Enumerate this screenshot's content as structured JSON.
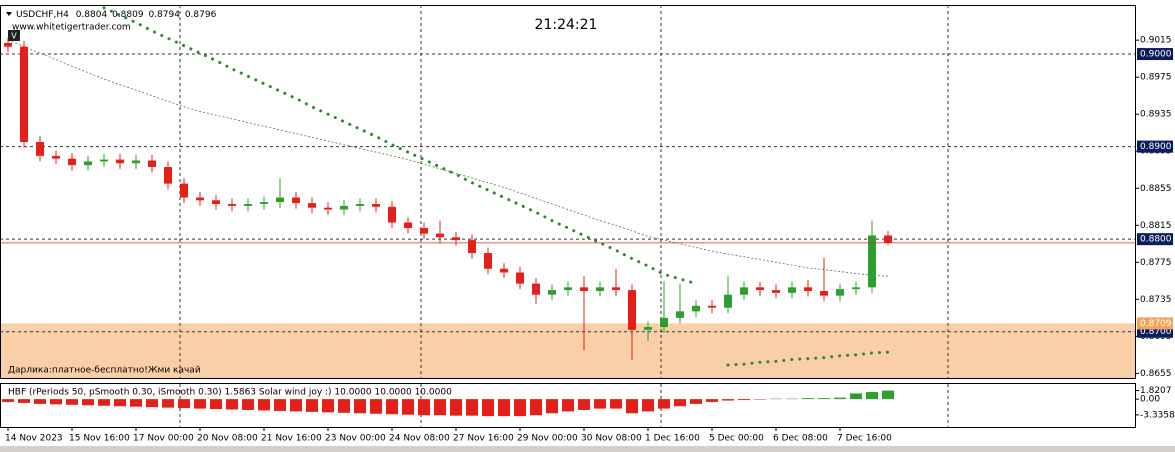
{
  "chart_data": {
    "type": "candlestick",
    "symbol": "USDCHF,H4",
    "watermark": "www.whitetigertrader.com",
    "badge": "V",
    "clock": "21:24:21",
    "up_color": "#2e9e2e",
    "down_color": "#e4201b",
    "ylim": [
      0.865,
      0.9053
    ],
    "yticks": [
      0.9015,
      0.8975,
      0.8935,
      0.8895,
      0.8855,
      0.8815,
      0.8775,
      0.8735,
      0.8695,
      0.8655
    ],
    "levels": [
      {
        "value": 0.9,
        "label": "0.9000"
      },
      {
        "value": 0.89,
        "label": "0.8900"
      },
      {
        "value": 0.88,
        "label": "0.8800"
      },
      {
        "value": 0.87,
        "label": "0.8700"
      }
    ],
    "zone": {
      "top": {
        "value": 0.8709,
        "label": "0.8709"
      },
      "text": "Дарлика:платное-бесплатно!Жми качай",
      "color": "#f8cfa6"
    },
    "categories": [
      "14 Nov 2023",
      null,
      null,
      null,
      "15 Nov 16:00",
      null,
      null,
      null,
      "17 Nov 00:00",
      null,
      null,
      null,
      "20 Nov 08:00",
      null,
      null,
      null,
      "21 Nov 16:00",
      null,
      null,
      null,
      "23 Nov 00:00",
      null,
      null,
      null,
      "24 Nov 08:00",
      null,
      null,
      null,
      "27 Nov 16:00",
      null,
      null,
      null,
      "29 Nov 00:00",
      null,
      null,
      null,
      "30 Nov 08:00",
      null,
      null,
      null,
      "1 Dec 16:00",
      null,
      null,
      null,
      "5 Dec 00:00",
      null,
      null,
      null,
      "6 Dec 08:00",
      null,
      null,
      null,
      "7 Dec 16:00",
      null,
      null,
      null
    ],
    "open": [
      0.9012,
      0.9008,
      0.8905,
      0.889,
      0.8887,
      0.888,
      0.8884,
      0.8886,
      0.8882,
      0.8885,
      0.8878,
      0.886,
      0.8845,
      0.8842,
      0.8838,
      0.8836,
      0.8838,
      0.884,
      0.8845,
      0.8839,
      0.8834,
      0.8832,
      0.8836,
      0.8838,
      0.8835,
      0.8818,
      0.8812,
      0.8806,
      0.8802,
      0.8799,
      0.8785,
      0.8768,
      0.8764,
      0.8752,
      0.874,
      0.8745,
      0.8748,
      0.8744,
      0.8748,
      0.8745,
      0.8702,
      0.8705,
      0.8715,
      0.8722,
      0.8728,
      0.8726,
      0.874,
      0.8748,
      0.8745,
      0.8742,
      0.8748,
      0.8744,
      0.8739,
      0.8746,
      0.8748,
      0.8804
    ],
    "high": [
      0.9018,
      0.9014,
      0.8911,
      0.8896,
      0.8893,
      0.889,
      0.8892,
      0.8892,
      0.8891,
      0.8891,
      0.8884,
      0.8866,
      0.8851,
      0.8848,
      0.8844,
      0.8844,
      0.8846,
      0.8866,
      0.8851,
      0.8845,
      0.884,
      0.8842,
      0.8844,
      0.8844,
      0.8841,
      0.8824,
      0.8818,
      0.882,
      0.8808,
      0.8805,
      0.8791,
      0.8774,
      0.877,
      0.8758,
      0.8751,
      0.8754,
      0.876,
      0.8754,
      0.8768,
      0.8751,
      0.8711,
      0.8755,
      0.8752,
      0.8734,
      0.8734,
      0.876,
      0.8754,
      0.8754,
      0.8751,
      0.8754,
      0.8756,
      0.878,
      0.8752,
      0.8754,
      0.882,
      0.8809
    ],
    "low": [
      0.9002,
      0.8899,
      0.8884,
      0.8881,
      0.8874,
      0.8874,
      0.8878,
      0.8876,
      0.8876,
      0.8872,
      0.8854,
      0.8839,
      0.8836,
      0.8832,
      0.883,
      0.883,
      0.8832,
      0.8834,
      0.8833,
      0.8828,
      0.8826,
      0.8826,
      0.883,
      0.8829,
      0.8812,
      0.8806,
      0.88,
      0.8796,
      0.8793,
      0.8779,
      0.8762,
      0.8758,
      0.8746,
      0.873,
      0.8734,
      0.8739,
      0.868,
      0.8738,
      0.8739,
      0.8669,
      0.869,
      0.8699,
      0.8709,
      0.8716,
      0.872,
      0.872,
      0.8734,
      0.8739,
      0.8736,
      0.8736,
      0.8738,
      0.8733,
      0.8733,
      0.874,
      0.8742,
      0.8794
    ],
    "close": [
      0.9008,
      0.8905,
      0.889,
      0.8887,
      0.888,
      0.8884,
      0.8886,
      0.8882,
      0.8885,
      0.8878,
      0.886,
      0.8845,
      0.8842,
      0.8838,
      0.8836,
      0.8838,
      0.884,
      0.8845,
      0.8839,
      0.8834,
      0.8832,
      0.8836,
      0.8838,
      0.8835,
      0.8818,
      0.8812,
      0.8806,
      0.8802,
      0.8799,
      0.8785,
      0.8768,
      0.8764,
      0.8752,
      0.874,
      0.8745,
      0.8748,
      0.8744,
      0.8748,
      0.8745,
      0.8702,
      0.8705,
      0.8715,
      0.8722,
      0.8728,
      0.8726,
      0.874,
      0.8748,
      0.8745,
      0.8742,
      0.8748,
      0.8744,
      0.8739,
      0.8746,
      0.8748,
      0.8804,
      0.8796
    ],
    "overlays": [
      {
        "style": "dotted",
        "color": "#2a8a2a",
        "values": [
          null,
          null,
          null,
          null,
          null,
          null,
          0.905,
          0.9042,
          0.9034,
          0.9025,
          0.9017,
          0.9009,
          0.9001,
          0.8993,
          0.8984,
          0.8976,
          0.8968,
          0.896,
          0.8952,
          0.8943,
          0.8935,
          0.8927,
          0.8919,
          0.8911,
          0.8902,
          0.8894,
          0.8886,
          0.8878,
          0.887,
          0.8861,
          0.8853,
          0.8845,
          0.8837,
          0.8829,
          0.882,
          0.8812,
          0.8804,
          0.8796,
          0.8788,
          0.8779,
          0.8771,
          0.8762,
          0.8757,
          0.8752,
          null,
          0.8664,
          0.8665,
          0.8667,
          0.8668,
          0.867,
          0.8671,
          0.8672,
          0.8674,
          0.8675,
          0.8677,
          0.8678
        ]
      },
      {
        "style": "dashed",
        "color": "#4a7a4a",
        "values": [
          0.9015,
          0.9008,
          0.9001,
          0.8994,
          0.8987,
          0.898,
          0.8973,
          0.8967,
          0.8961,
          0.8955,
          0.8949,
          0.8943,
          0.8938,
          0.8934,
          0.893,
          0.8926,
          0.8922,
          0.8918,
          0.8914,
          0.891,
          0.8906,
          0.8902,
          0.8898,
          0.8894,
          0.889,
          0.8886,
          0.8881,
          0.8876,
          0.8871,
          0.8866,
          0.8861,
          0.8856,
          0.885,
          0.8844,
          0.8838,
          0.8832,
          0.8826,
          0.882,
          0.8815,
          0.8809,
          0.8803,
          0.8799,
          0.8795,
          0.8791,
          0.8787,
          0.8784,
          0.8781,
          0.8778,
          0.8775,
          0.8772,
          0.8769,
          0.8767,
          0.8765,
          0.8763,
          0.8761,
          0.876
        ]
      }
    ],
    "indicator": {
      "title": "HBF (rPeriods 50, pSmooth 0.30, iSmooth 0.30)  1.5863  Solar wind joy :)  10.0000 10.0000 10.0000",
      "ylim": [
        -5.9,
        3.2
      ],
      "yticks": [
        1.8207,
        {
          "value": 0,
          "label": "0.00"
        },
        -3.3358
      ],
      "up_color": "#2e9e2e",
      "down_color": "#e4201b",
      "values": [
        -0.6,
        -0.8,
        -1.0,
        -1.1,
        -1.2,
        -1.3,
        -1.4,
        -1.5,
        -1.6,
        -1.7,
        -1.8,
        -1.9,
        -2.0,
        -2.1,
        -2.2,
        -2.3,
        -2.4,
        -2.5,
        -2.6,
        -2.7,
        -2.8,
        -2.9,
        -3.0,
        -3.1,
        -3.2,
        -3.3,
        -3.4,
        -3.4,
        -3.5,
        -3.5,
        -3.6,
        -3.6,
        -3.6,
        -3.4,
        -3.0,
        -2.6,
        -2.3,
        -2.0,
        -2.0,
        -3.0,
        -2.6,
        -2.0,
        -1.5,
        -1.0,
        -0.6,
        -0.3,
        -0.2,
        -0.1,
        0.1,
        0.1,
        0.2,
        0.2,
        0.3,
        1.2,
        1.5,
        1.8
      ]
    }
  }
}
